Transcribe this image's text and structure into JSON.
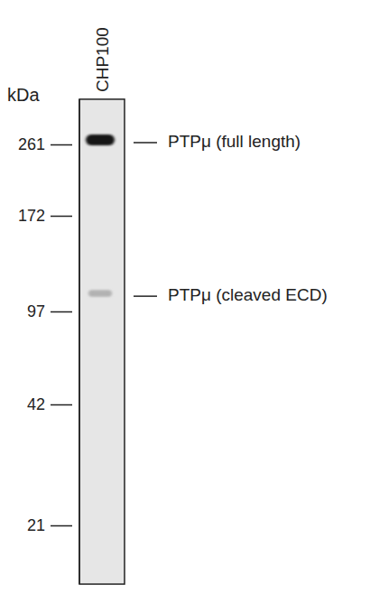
{
  "chart_data": {
    "type": "blot",
    "lane_label": "CHP100",
    "y_label": "kDa",
    "log": "y",
    "ylim": [
      340,
      15
    ],
    "yticks": [
      261,
      172,
      97,
      42,
      21
    ],
    "bands": [
      {
        "name": "PTPμ (full length)",
        "value": 268,
        "intensity": 1
      },
      {
        "name": "PTPμ (cleaved ECD)",
        "value": 108,
        "intensity": 0.25
      }
    ]
  }
}
